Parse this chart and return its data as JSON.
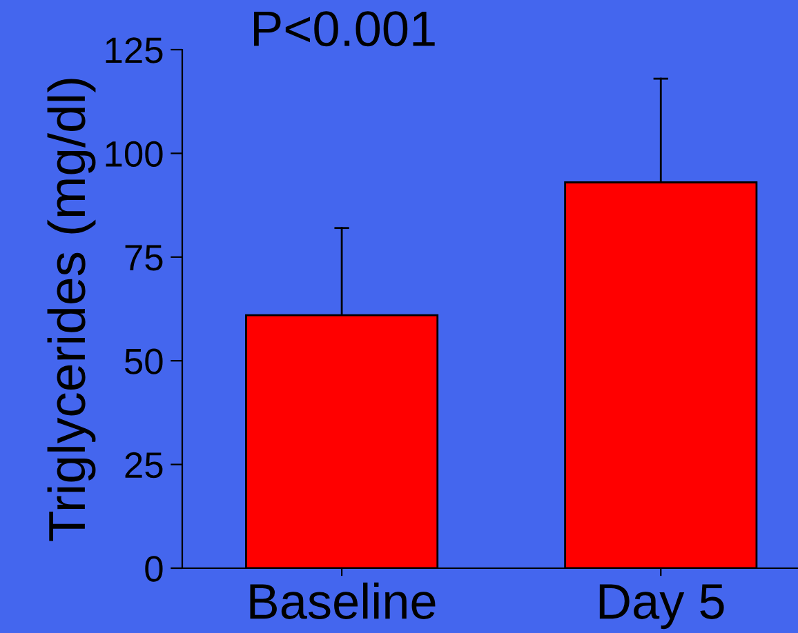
{
  "chart_data": {
    "type": "bar",
    "title": "P<0.001",
    "ylabel": "Triglycerides (mg/dl)",
    "categories": [
      "Baseline",
      "Day 5"
    ],
    "values": [
      61,
      93
    ],
    "color": "#ff0000",
    "errors": [
      [
        61,
        82
      ],
      [
        93,
        118
      ]
    ],
    "ylim": [
      0,
      125
    ],
    "yticks": [
      0,
      25,
      50,
      75,
      100,
      125
    ],
    "grid": false
  }
}
